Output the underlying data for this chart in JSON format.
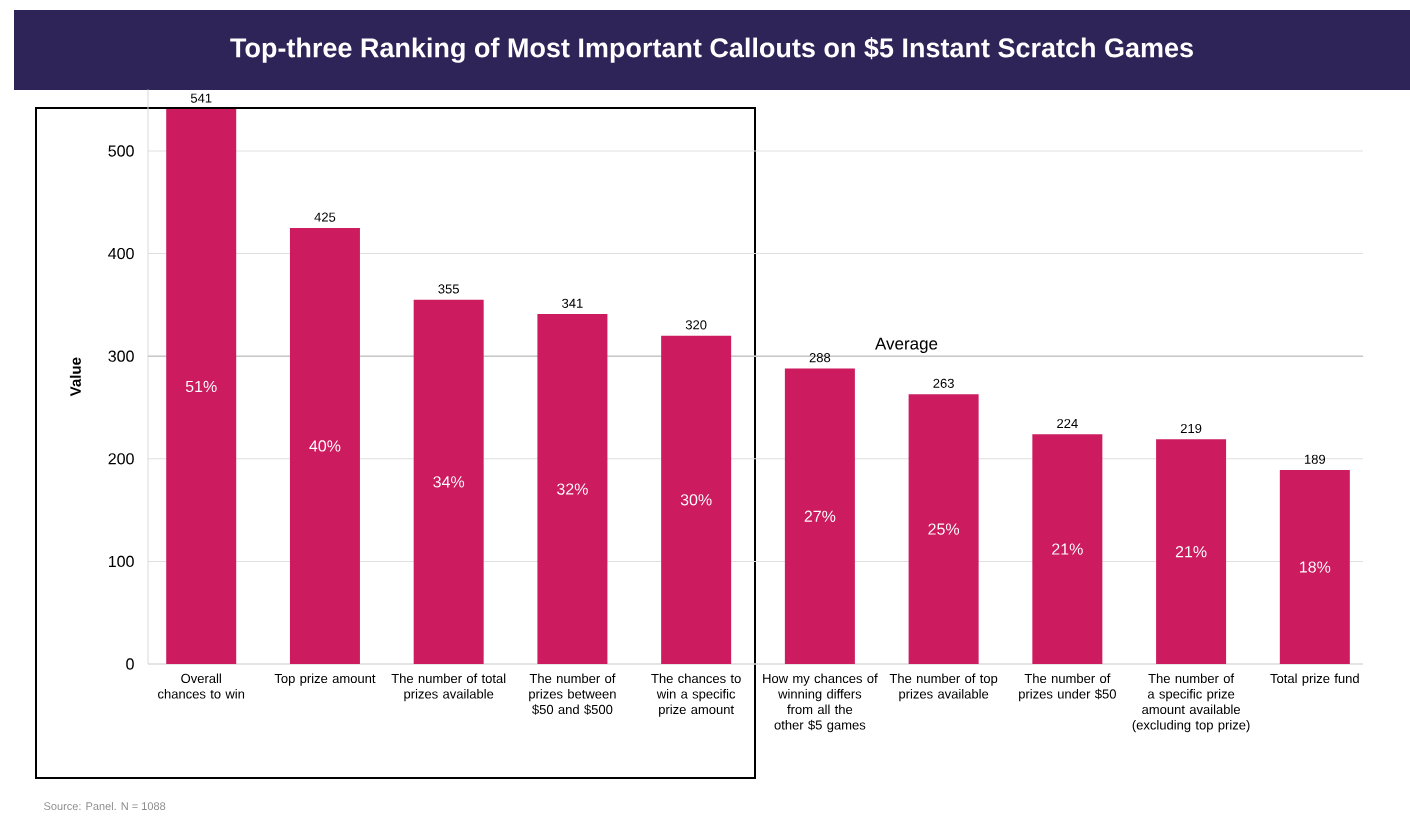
{
  "chart_data": {
    "type": "bar",
    "title": "Top-three Ranking of Most Important Callouts on $5 Instant Scratch Games",
    "ylabel": "Value",
    "categories": [
      "Overall chances to win",
      "Top prize amount",
      "The number of total prizes available",
      "The number of prizes between $50 and $500",
      "The chances to win a specific prize amount",
      "How my chances of winning differs from all the other $5 games",
      "The number of top prizes available",
      "The number of prizes under $50",
      "The number of a specific prize amount available (excluding top prize)",
      "Total prize fund"
    ],
    "values": [
      541,
      425,
      355,
      341,
      320,
      288,
      263,
      224,
      219,
      189
    ],
    "value_labels": [
      "541",
      "425",
      "355",
      "341",
      "320",
      "288",
      "263",
      "224",
      "219",
      "189"
    ],
    "color": "#cc1b5f",
    "ylim": [
      0,
      560
    ],
    "yticks": [
      0,
      100,
      200,
      300,
      400,
      500
    ],
    "grid": "y",
    "ref_lines": [
      {
        "axis": "y",
        "value": 300,
        "label": "Average",
        "color": "#c8c8c8"
      }
    ],
    "annotations": [
      "51%",
      "40%",
      "34%",
      "32%",
      "30%",
      "27%",
      "25%",
      "21%",
      "21%",
      "18%",
      "Source: Panel. N = 1088"
    ]
  }
}
